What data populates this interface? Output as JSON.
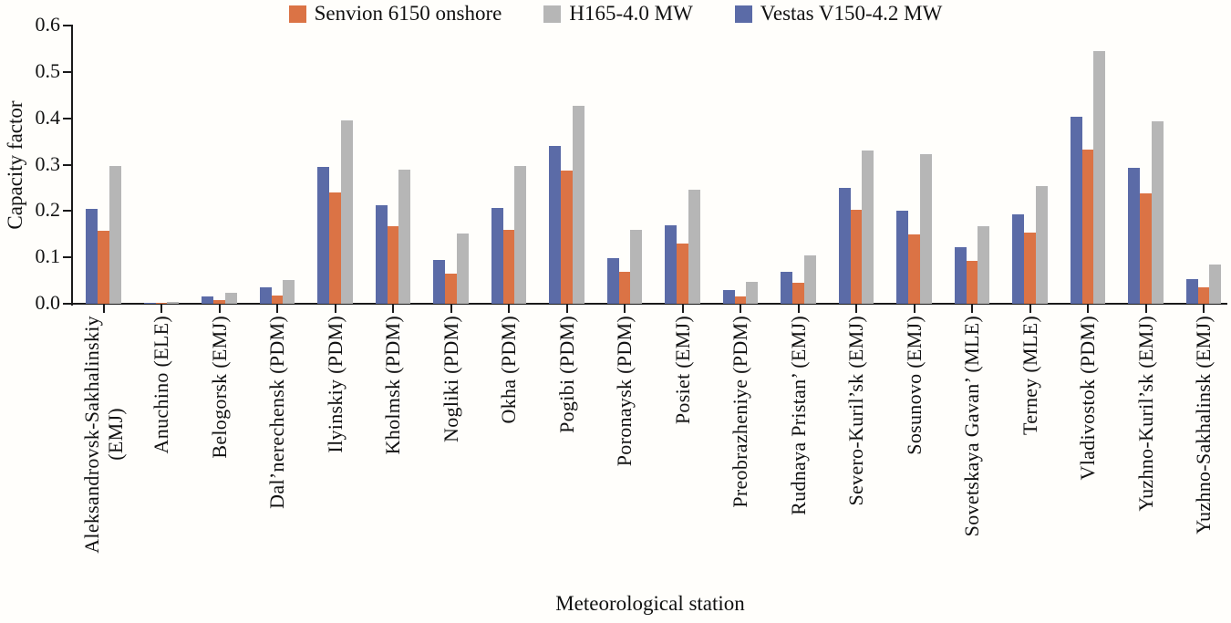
{
  "chart_data": {
    "type": "bar",
    "title": "",
    "xlabel": "Meteorological station",
    "ylabel": "Capacity factor",
    "ylim": [
      0,
      0.6
    ],
    "ytick_labels": [
      "0.0",
      "0.1",
      "0.2",
      "0.3",
      "0.4",
      "0.5",
      "0.6"
    ],
    "grid": false,
    "legend_position": "top-center",
    "categories": [
      "Aleksandrovsk-Sakhalinskiy\n(EMJ)",
      "Anuchino (ELE)",
      "Belogorsk (EMJ)",
      "Dal’nerechensk (PDM)",
      "Ilyinskiy (PDM)",
      "Kholmsk (PDM)",
      "Nogliki (PDM)",
      "Okha (PDM)",
      "Pogibi (PDM)",
      "Poronaysk (PDM)",
      "Posiet (EMJ)",
      "Preobrazheniye (PDM)",
      "Rudnaya Pristan’ (EMJ)",
      "Severo-Kuril’sk (EMJ)",
      "Sosunovo (EMJ)",
      "Sovetskaya Gavan’ (MLE)",
      "Terney (MLE)",
      "Vladivostok (PDM)",
      "Yuzhno-Kuril’sk (EMJ)",
      "Yuzhno-Sakhalinsk (EMJ)"
    ],
    "series": [
      {
        "name": "Senvion 6150 onshore",
        "color": "#DB7345",
        "values": [
          0.157,
          0.001,
          0.008,
          0.018,
          0.24,
          0.167,
          0.065,
          0.16,
          0.287,
          0.069,
          0.13,
          0.016,
          0.046,
          0.203,
          0.15,
          0.092,
          0.154,
          0.333,
          0.238,
          0.035
        ]
      },
      {
        "name": "H165-4.0 MW",
        "color": "#B6B6B6",
        "values": [
          0.297,
          0.004,
          0.023,
          0.052,
          0.396,
          0.289,
          0.152,
          0.298,
          0.426,
          0.159,
          0.246,
          0.047,
          0.104,
          0.33,
          0.323,
          0.167,
          0.253,
          0.545,
          0.394,
          0.084
        ]
      },
      {
        "name": "Vestas V150-4.2 MW",
        "color": "#5B6BA7",
        "values": [
          0.205,
          0.002,
          0.015,
          0.035,
          0.295,
          0.212,
          0.094,
          0.206,
          0.34,
          0.099,
          0.17,
          0.029,
          0.068,
          0.25,
          0.201,
          0.122,
          0.193,
          0.403,
          0.294,
          0.053
        ]
      }
    ],
    "bar_order": [
      "Vestas V150-4.2 MW",
      "Senvion 6150 onshore",
      "H165-4.0 MW"
    ],
    "axis_color": "#1a1a1a"
  }
}
